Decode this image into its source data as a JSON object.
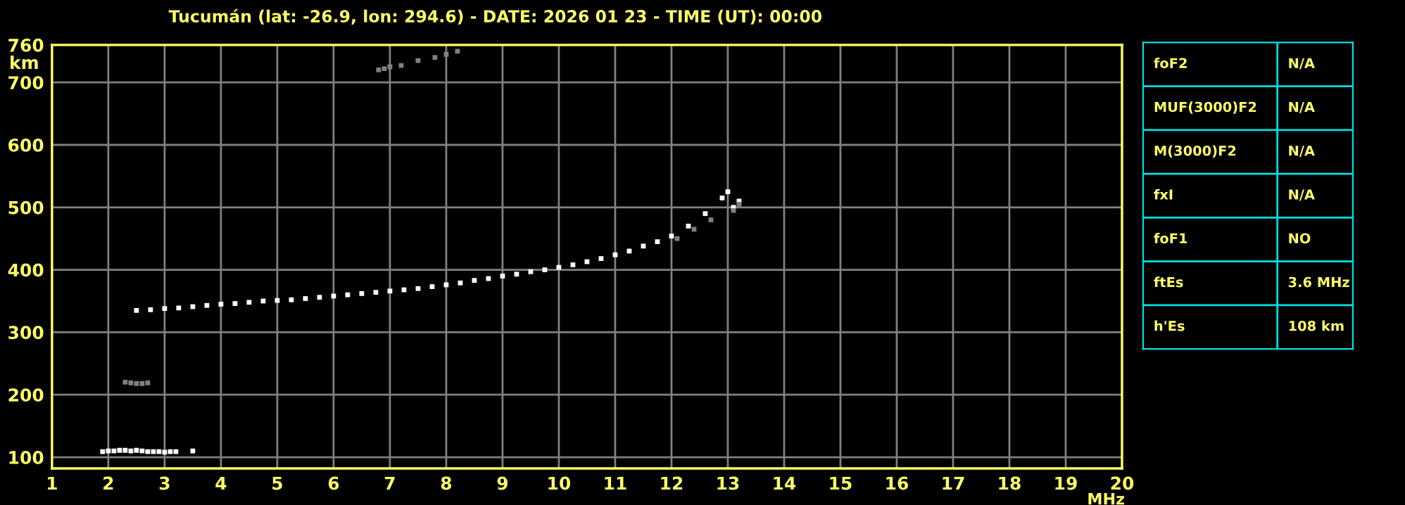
{
  "chart_data": [
    {
      "type": "scatter",
      "title": "Tucumán (lat: -26.9, lon: 294.6) - DATE: 2026 01 23 - TIME (UT): 00:00",
      "xlabel": "MHz",
      "ylabel": "km",
      "marker": "square",
      "grid": true,
      "xlim": [
        1,
        20
      ],
      "ylim": [
        82,
        760
      ],
      "xticks": [
        1,
        2,
        3,
        4,
        5,
        6,
        7,
        8,
        9,
        10,
        11,
        12,
        13,
        14,
        15,
        16,
        17,
        18,
        19,
        20
      ],
      "yticks": [
        100,
        200,
        300,
        400,
        500,
        600,
        700,
        760
      ],
      "series": [
        {
          "color": "#ffffff",
          "x": [
            2.5,
            2.75,
            3.0,
            3.25,
            3.5,
            3.75,
            4.0,
            4.25,
            4.5,
            4.75,
            5.0,
            5.25,
            5.5,
            5.75,
            6.0,
            6.25,
            6.5,
            6.75,
            7.0,
            7.25,
            7.5,
            7.75,
            8.0,
            8.25,
            8.5,
            8.75,
            9.0,
            9.25,
            9.5,
            9.75,
            10.0,
            10.25,
            10.5,
            10.75,
            11.0,
            11.25,
            11.5,
            11.75,
            12.0,
            12.3,
            12.6,
            12.9,
            13.0,
            13.1,
            13.2
          ],
          "values": [
            335,
            336,
            338,
            339,
            341,
            343,
            345,
            346,
            348,
            350,
            351,
            352,
            354,
            356,
            358,
            360,
            362,
            364,
            366,
            368,
            370,
            373,
            376,
            379,
            383,
            386,
            390,
            393,
            397,
            400,
            404,
            408,
            413,
            418,
            424,
            430,
            438,
            445,
            454,
            470,
            490,
            515,
            525,
            500,
            510
          ]
        },
        {
          "color": "#ffffff",
          "x": [
            1.9,
            2.0,
            2.1,
            2.2,
            2.3,
            2.4,
            2.5,
            2.6,
            2.7,
            2.8,
            2.9,
            3.0,
            3.1,
            3.2,
            3.5
          ],
          "values": [
            109,
            110,
            110,
            111,
            111,
            110,
            111,
            110,
            109,
            109,
            109,
            108,
            109,
            109,
            110
          ]
        },
        {
          "color": "#808080",
          "x": [
            2.3,
            2.4,
            2.5,
            2.6,
            2.7,
            6.8,
            6.9,
            7.0,
            7.2,
            7.5,
            7.8,
            8.0,
            8.2,
            12.1,
            12.4,
            12.7,
            13.1,
            13.2
          ],
          "values": [
            220,
            219,
            218,
            218,
            219,
            720,
            722,
            725,
            727,
            735,
            740,
            745,
            750,
            450,
            465,
            480,
            495,
            505
          ]
        }
      ]
    },
    {
      "type": "other",
      "annotations": [
        "foF2",
        "N/A",
        "MUF(3000)F2",
        "N/A",
        "M(3000)F2",
        "N/A",
        "fxI",
        "N/A",
        "foF1",
        "NO",
        "ftEs",
        "3.6 MHz",
        "h'Es",
        "108 km"
      ]
    }
  ]
}
